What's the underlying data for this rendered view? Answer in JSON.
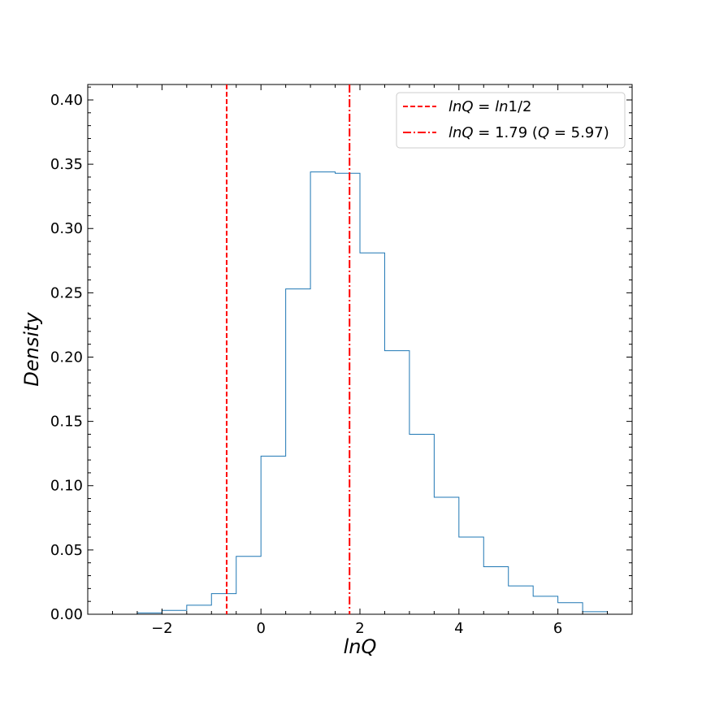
{
  "chart_data": {
    "type": "histogram",
    "xlabel": "lnQ",
    "ylabel": "Density",
    "xlim": [
      -3.5,
      7.5
    ],
    "ylim": [
      0.0,
      0.412
    ],
    "x_ticks": [
      -2,
      0,
      2,
      4,
      6
    ],
    "x_tick_labels": [
      "−2",
      "0",
      "2",
      "4",
      "6"
    ],
    "y_ticks": [
      0.0,
      0.05,
      0.1,
      0.15,
      0.2,
      0.25,
      0.3,
      0.35,
      0.4
    ],
    "y_tick_labels": [
      "0.00",
      "0.05",
      "0.10",
      "0.15",
      "0.20",
      "0.25",
      "0.30",
      "0.35",
      "0.40"
    ],
    "bin_edges": [
      -2.5,
      -2.0,
      -1.5,
      -1.0,
      -0.5,
      0.0,
      0.5,
      1.0,
      1.5,
      2.0,
      2.5,
      3.0,
      3.5,
      4.0,
      4.5,
      5.0,
      5.5,
      6.0,
      6.5,
      7.0
    ],
    "density": [
      0.001,
      0.003,
      0.007,
      0.016,
      0.045,
      0.123,
      0.253,
      0.344,
      0.343,
      0.281,
      0.205,
      0.14,
      0.091,
      0.06,
      0.037,
      0.022,
      0.014,
      0.009,
      0.002
    ],
    "series_color": "#1f77b4",
    "reference_lines": [
      {
        "x": -0.693,
        "style": "dashed",
        "color": "#ff0000",
        "legend": {
          "a": "lnQ",
          "b": " = ",
          "c": "ln",
          "d": "1/2"
        }
      },
      {
        "x": 1.79,
        "style": "dashdot",
        "color": "#ff0000",
        "legend": {
          "a": "lnQ",
          "b": " = 1.79 (",
          "c": "Q",
          "d": " = 5.97)"
        }
      }
    ],
    "legend_position": "top-right",
    "grid": false
  }
}
